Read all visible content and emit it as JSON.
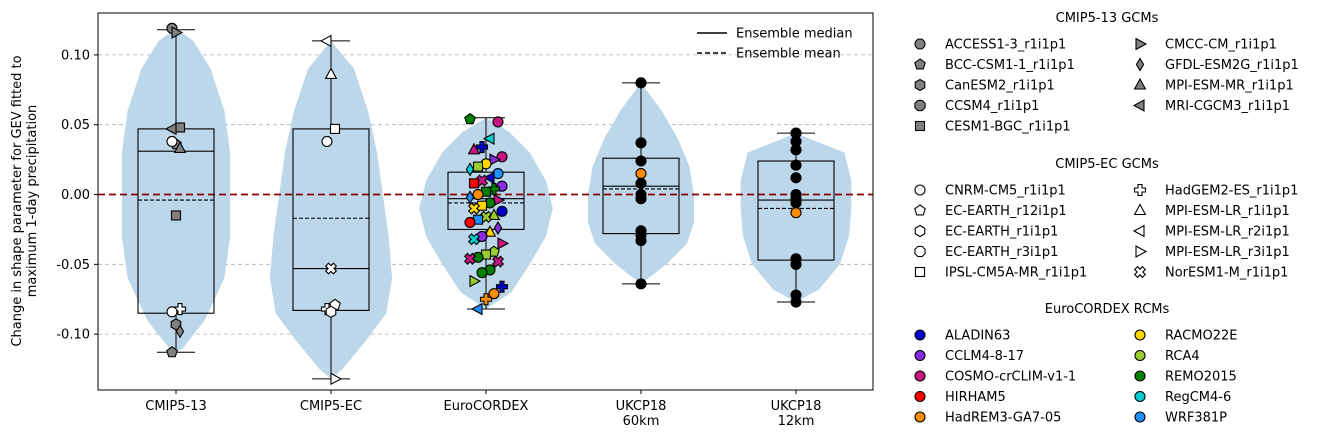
{
  "chart_data": {
    "type": "violin",
    "ylabel": "Change in shape parameter for GEV fitted to\nmaximum 1-day precipitation",
    "ylim": [
      -0.14,
      0.13
    ],
    "yticks": [
      -0.1,
      -0.05,
      0.0,
      0.05,
      0.1
    ],
    "grid": "horizontal dashed",
    "zero_line_color": "#8b0000",
    "violin_color": "#bcd6ea",
    "categories": [
      "CMIP5-13",
      "CMIP5-EC",
      "EuroCORDEX",
      "UKCP18\n60km",
      "UKCP18\n12km"
    ],
    "summary": [
      {
        "q1": -0.085,
        "q3": 0.047,
        "median": 0.031,
        "mean": -0.004,
        "whisker_low": -0.113,
        "whisker_high": 0.118
      },
      {
        "q1": -0.083,
        "q3": 0.047,
        "median": -0.053,
        "mean": -0.017,
        "whisker_low": -0.132,
        "whisker_high": 0.11
      },
      {
        "q1": -0.025,
        "q3": 0.016,
        "median": -0.003,
        "mean": -0.006,
        "whisker_low": -0.082,
        "whisker_high": 0.055
      },
      {
        "q1": -0.028,
        "q3": 0.026,
        "median": 0.006,
        "mean": 0.004,
        "whisker_low": -0.064,
        "whisker_high": 0.08
      },
      {
        "q1": -0.047,
        "q3": 0.024,
        "median": -0.004,
        "mean": -0.01,
        "whisker_low": -0.077,
        "whisker_high": 0.044
      }
    ],
    "violin_profiles": [
      [
        [
          -0.113,
          0.0
        ],
        [
          -0.11,
          0.06
        ],
        [
          -0.09,
          0.25
        ],
        [
          -0.06,
          0.42
        ],
        [
          -0.03,
          0.47
        ],
        [
          0.0,
          0.47
        ],
        [
          0.03,
          0.47
        ],
        [
          0.06,
          0.42
        ],
        [
          0.09,
          0.3
        ],
        [
          0.11,
          0.15
        ],
        [
          0.119,
          0.0
        ]
      ],
      [
        [
          -0.132,
          0.0
        ],
        [
          -0.125,
          0.1
        ],
        [
          -0.105,
          0.3
        ],
        [
          -0.085,
          0.48
        ],
        [
          -0.06,
          0.53
        ],
        [
          -0.03,
          0.5
        ],
        [
          0.0,
          0.45
        ],
        [
          0.03,
          0.4
        ],
        [
          0.06,
          0.32
        ],
        [
          0.09,
          0.2
        ],
        [
          0.11,
          0.0
        ]
      ],
      [
        [
          -0.082,
          0.0
        ],
        [
          -0.07,
          0.22
        ],
        [
          -0.05,
          0.38
        ],
        [
          -0.03,
          0.52
        ],
        [
          -0.01,
          0.58
        ],
        [
          0.01,
          0.52
        ],
        [
          0.03,
          0.38
        ],
        [
          0.045,
          0.2
        ],
        [
          0.055,
          0.0
        ]
      ],
      [
        [
          -0.064,
          0.0
        ],
        [
          -0.05,
          0.22
        ],
        [
          -0.035,
          0.4
        ],
        [
          -0.02,
          0.46
        ],
        [
          0.0,
          0.46
        ],
        [
          0.02,
          0.42
        ],
        [
          0.04,
          0.32
        ],
        [
          0.06,
          0.18
        ],
        [
          0.08,
          0.0
        ]
      ],
      [
        [
          -0.077,
          0.0
        ],
        [
          -0.068,
          0.2
        ],
        [
          -0.05,
          0.38
        ],
        [
          -0.03,
          0.46
        ],
        [
          -0.01,
          0.48
        ],
        [
          0.01,
          0.48
        ],
        [
          0.03,
          0.42
        ],
        [
          0.044,
          0.0
        ]
      ]
    ],
    "points": [
      [
        {
          "y": 0.119,
          "m": "circle",
          "c": "#808080"
        },
        {
          "y": 0.116,
          "m": "tri-right",
          "c": "#808080"
        },
        {
          "y": 0.048,
          "m": "square",
          "c": "#808080"
        },
        {
          "y": 0.047,
          "m": "tri-left",
          "c": "#808080"
        },
        {
          "y": 0.036,
          "m": "pentagon",
          "c": "#808080"
        },
        {
          "y": 0.033,
          "m": "tri-up",
          "c": "#808080"
        },
        {
          "y": 0.038,
          "m": "circle",
          "c": "#ffffff"
        },
        {
          "y": -0.015,
          "m": "square",
          "c": "#808080"
        },
        {
          "y": -0.082,
          "m": "plus",
          "c": "#ffffff"
        },
        {
          "y": -0.084,
          "m": "circle",
          "c": "#ffffff"
        },
        {
          "y": -0.093,
          "m": "hexagon",
          "c": "#808080"
        },
        {
          "y": -0.098,
          "m": "diamond",
          "c": "#808080"
        },
        {
          "y": -0.113,
          "m": "pentagon",
          "c": "#808080"
        }
      ],
      [
        {
          "y": 0.11,
          "m": "tri-left",
          "c": "#ffffff"
        },
        {
          "y": 0.086,
          "m": "tri-up",
          "c": "#ffffff"
        },
        {
          "y": 0.047,
          "m": "square",
          "c": "#ffffff"
        },
        {
          "y": 0.038,
          "m": "circle",
          "c": "#ffffff"
        },
        {
          "y": -0.053,
          "m": "cross",
          "c": "#ffffff"
        },
        {
          "y": -0.079,
          "m": "pentagon",
          "c": "#ffffff"
        },
        {
          "y": -0.082,
          "m": "plus",
          "c": "#ffffff"
        },
        {
          "y": -0.084,
          "m": "hexagon",
          "c": "#ffffff"
        },
        {
          "y": -0.132,
          "m": "tri-right",
          "c": "#ffffff"
        }
      ],
      [
        {
          "y": 0.054,
          "m": "pentagon",
          "c": "#008000"
        },
        {
          "y": 0.052,
          "m": "circle",
          "c": "#c71585"
        },
        {
          "y": 0.04,
          "m": "tri-left",
          "c": "#00ced1"
        },
        {
          "y": 0.034,
          "m": "plus",
          "c": "#0000cd"
        },
        {
          "y": 0.032,
          "m": "tri-up",
          "c": "#c71585"
        },
        {
          "y": 0.027,
          "m": "circle",
          "c": "#c71585"
        },
        {
          "y": 0.025,
          "m": "tri-right",
          "c": "#8a2be2"
        },
        {
          "y": 0.022,
          "m": "circle",
          "c": "#ffd700"
        },
        {
          "y": 0.02,
          "m": "square",
          "c": "#9acd32"
        },
        {
          "y": 0.018,
          "m": "diamond",
          "c": "#00ced1"
        },
        {
          "y": 0.015,
          "m": "circle",
          "c": "#1e90ff"
        },
        {
          "y": 0.012,
          "m": "tri-left",
          "c": "#0000cd"
        },
        {
          "y": 0.01,
          "m": "cross",
          "c": "#c71585"
        },
        {
          "y": 0.008,
          "m": "square",
          "c": "#ff0000"
        },
        {
          "y": 0.006,
          "m": "circle",
          "c": "#8a2be2"
        },
        {
          "y": 0.004,
          "m": "plus",
          "c": "#008000"
        },
        {
          "y": 0.002,
          "m": "square",
          "c": "#008000"
        },
        {
          "y": 0.0,
          "m": "circle",
          "c": "#ff8c00"
        },
        {
          "y": -0.002,
          "m": "diamond",
          "c": "#1e90ff"
        },
        {
          "y": -0.004,
          "m": "tri-right",
          "c": "#c71585"
        },
        {
          "y": -0.006,
          "m": "circle",
          "c": "#008000"
        },
        {
          "y": -0.008,
          "m": "square",
          "c": "#ffd700"
        },
        {
          "y": -0.01,
          "m": "cross",
          "c": "#ffd700"
        },
        {
          "y": -0.012,
          "m": "circle",
          "c": "#0000cd"
        },
        {
          "y": -0.015,
          "m": "tri-up",
          "c": "#9acd32"
        },
        {
          "y": -0.016,
          "m": "cross",
          "c": "#9acd32"
        },
        {
          "y": -0.018,
          "m": "square",
          "c": "#1e90ff"
        },
        {
          "y": -0.02,
          "m": "circle",
          "c": "#ff0000"
        },
        {
          "y": -0.024,
          "m": "diamond",
          "c": "#8a2be2"
        },
        {
          "y": -0.027,
          "m": "tri-up",
          "c": "#ffd700"
        },
        {
          "y": -0.03,
          "m": "circle",
          "c": "#8a2be2"
        },
        {
          "y": -0.032,
          "m": "cross",
          "c": "#00ced1"
        },
        {
          "y": -0.035,
          "m": "tri-right",
          "c": "#c71585"
        },
        {
          "y": -0.041,
          "m": "pentagon",
          "c": "#9acd32"
        },
        {
          "y": -0.043,
          "m": "square",
          "c": "#9acd32"
        },
        {
          "y": -0.045,
          "m": "circle",
          "c": "#008000"
        },
        {
          "y": -0.046,
          "m": "cross",
          "c": "#c71585"
        },
        {
          "y": -0.048,
          "m": "cross",
          "c": "#c71585"
        },
        {
          "y": -0.054,
          "m": "circle",
          "c": "#008000"
        },
        {
          "y": -0.056,
          "m": "circle",
          "c": "#008000"
        },
        {
          "y": -0.062,
          "m": "tri-right",
          "c": "#9acd32"
        },
        {
          "y": -0.066,
          "m": "plus",
          "c": "#0000cd"
        },
        {
          "y": -0.071,
          "m": "circle",
          "c": "#ff8c00"
        },
        {
          "y": -0.075,
          "m": "plus",
          "c": "#ff8c00"
        },
        {
          "y": -0.082,
          "m": "tri-left",
          "c": "#1e90ff"
        }
      ],
      [
        {
          "y": 0.08,
          "m": "circle",
          "c": "#000000"
        },
        {
          "y": 0.037,
          "m": "circle",
          "c": "#000000"
        },
        {
          "y": 0.024,
          "m": "circle",
          "c": "#000000"
        },
        {
          "y": 0.015,
          "m": "circle",
          "c": "#ff8c00"
        },
        {
          "y": 0.008,
          "m": "circle",
          "c": "#000000"
        },
        {
          "y": 0.0,
          "m": "circle",
          "c": "#000000"
        },
        {
          "y": -0.003,
          "m": "circle",
          "c": "#000000"
        },
        {
          "y": -0.026,
          "m": "circle",
          "c": "#000000"
        },
        {
          "y": -0.029,
          "m": "circle",
          "c": "#000000"
        },
        {
          "y": -0.033,
          "m": "circle",
          "c": "#000000"
        },
        {
          "y": -0.064,
          "m": "circle",
          "c": "#000000"
        }
      ],
      [
        {
          "y": 0.044,
          "m": "circle",
          "c": "#000000"
        },
        {
          "y": 0.038,
          "m": "circle",
          "c": "#000000"
        },
        {
          "y": 0.032,
          "m": "circle",
          "c": "#000000"
        },
        {
          "y": 0.021,
          "m": "circle",
          "c": "#000000"
        },
        {
          "y": 0.012,
          "m": "circle",
          "c": "#000000"
        },
        {
          "y": 0.0,
          "m": "circle",
          "c": "#000000"
        },
        {
          "y": -0.003,
          "m": "circle",
          "c": "#000000"
        },
        {
          "y": -0.006,
          "m": "circle",
          "c": "#000000"
        },
        {
          "y": -0.013,
          "m": "circle",
          "c": "#ff8c00"
        },
        {
          "y": -0.046,
          "m": "circle",
          "c": "#000000"
        },
        {
          "y": -0.05,
          "m": "circle",
          "c": "#000000"
        },
        {
          "y": -0.072,
          "m": "circle",
          "c": "#000000"
        },
        {
          "y": -0.077,
          "m": "circle",
          "c": "#000000"
        }
      ]
    ],
    "line_legend": [
      {
        "label": "Ensemble median",
        "style": "solid"
      },
      {
        "label": "Ensemble mean",
        "style": "dashed"
      }
    ],
    "legend_groups": [
      {
        "title": "CMIP5-13 GCMs",
        "items": [
          {
            "label": "ACCESS1-3_r1i1p1",
            "m": "circle",
            "c": "#808080"
          },
          {
            "label": "BCC-CSM1-1_r1i1p1",
            "m": "pentagon",
            "c": "#808080"
          },
          {
            "label": "CanESM2_r1i1p1",
            "m": "hexagon",
            "c": "#808080"
          },
          {
            "label": "CCSM4_r1i1p1",
            "m": "octagon",
            "c": "#808080"
          },
          {
            "label": "CESM1-BGC_r1i1p1",
            "m": "square",
            "c": "#808080"
          },
          {
            "label": "CMCC-CM_r1i1p1",
            "m": "tri-right",
            "c": "#808080"
          },
          {
            "label": "GFDL-ESM2G_r1i1p1",
            "m": "diamond",
            "c": "#808080"
          },
          {
            "label": "MPI-ESM-MR_r1i1p1",
            "m": "tri-up",
            "c": "#808080"
          },
          {
            "label": "MRI-CGCM3_r1i1p1",
            "m": "tri-left",
            "c": "#808080"
          }
        ]
      },
      {
        "title": "CMIP5-EC GCMs",
        "items": [
          {
            "label": "CNRM-CM5_r1i1p1",
            "m": "circle",
            "c": "#ffffff"
          },
          {
            "label": "EC-EARTH_r12i1p1",
            "m": "pentagon",
            "c": "#ffffff"
          },
          {
            "label": "EC-EARTH_r1i1p1",
            "m": "hexagon",
            "c": "#ffffff"
          },
          {
            "label": "EC-EARTH_r3i1p1",
            "m": "octagon",
            "c": "#ffffff"
          },
          {
            "label": "IPSL-CM5A-MR_r1i1p1",
            "m": "square",
            "c": "#ffffff"
          },
          {
            "label": "HadGEM2-ES_r1i1p1",
            "m": "plus",
            "c": "#ffffff"
          },
          {
            "label": "MPI-ESM-LR_r1i1p1",
            "m": "tri-up",
            "c": "#ffffff"
          },
          {
            "label": "MPI-ESM-LR_r2i1p1",
            "m": "tri-left",
            "c": "#ffffff"
          },
          {
            "label": "MPI-ESM-LR_r3i1p1",
            "m": "tri-right",
            "c": "#ffffff"
          },
          {
            "label": "NorESM1-M_r1i1p1",
            "m": "cross",
            "c": "#ffffff"
          }
        ]
      },
      {
        "title": "EuroCORDEX RCMs",
        "items": [
          {
            "label": "ALADIN63",
            "m": "circle",
            "c": "#0000cd"
          },
          {
            "label": "CCLM4-8-17",
            "m": "circle",
            "c": "#8a2be2"
          },
          {
            "label": "COSMO-crCLIM-v1-1",
            "m": "circle",
            "c": "#c71585"
          },
          {
            "label": "HIRHAM5",
            "m": "circle",
            "c": "#ff0000"
          },
          {
            "label": "HadREM3-GA7-05",
            "m": "circle",
            "c": "#ff8c00"
          },
          {
            "label": "RACMO22E",
            "m": "circle",
            "c": "#ffd700"
          },
          {
            "label": "RCA4",
            "m": "circle",
            "c": "#9acd32"
          },
          {
            "label": "REMO2015",
            "m": "circle",
            "c": "#008000"
          },
          {
            "label": "RegCM4-6",
            "m": "circle",
            "c": "#00ced1"
          },
          {
            "label": "WRF381P",
            "m": "circle",
            "c": "#1e90ff"
          }
        ]
      }
    ]
  }
}
